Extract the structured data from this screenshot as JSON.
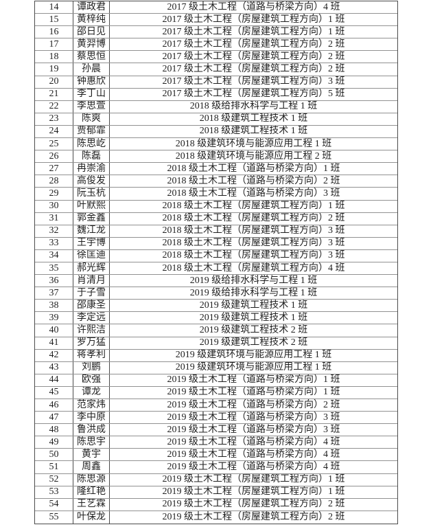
{
  "table": {
    "rows": [
      {
        "no": "14",
        "name": "谭政君",
        "class": "2017 级土木工程（道路与桥梁方向）4 班"
      },
      {
        "no": "15",
        "name": "黄梓纯",
        "class": "2017 级土木工程（房屋建筑工程方向）1 班"
      },
      {
        "no": "16",
        "name": "邵日见",
        "class": "2017 级土木工程（房屋建筑工程方向）1 班"
      },
      {
        "no": "17",
        "name": "黄羿博",
        "class": "2017 级土木工程（房屋建筑工程方向）2 班"
      },
      {
        "no": "18",
        "name": "蔡思恒",
        "class": "2017 级土木工程（房屋建筑工程方向）2 班"
      },
      {
        "no": "19",
        "name": "孙晨",
        "class": "2017 级土木工程（房屋建筑工程方向）2 班"
      },
      {
        "no": "20",
        "name": "钟惠欣",
        "class": "2017 级土木工程（房屋建筑工程方向）3 班"
      },
      {
        "no": "21",
        "name": "李丁山",
        "class": "2017 级土木工程（房屋建筑工程方向）5 班"
      },
      {
        "no": "22",
        "name": "李思萱",
        "class": "2018 级给排水科学与工程 1 班"
      },
      {
        "no": "23",
        "name": "陈爽",
        "class": "2018 级建筑工程技术 1 班"
      },
      {
        "no": "24",
        "name": "贾郁霏",
        "class": "2018 级建筑工程技术 1 班"
      },
      {
        "no": "25",
        "name": "陈思屹",
        "class": "2018 级建筑环境与能源应用工程 1 班"
      },
      {
        "no": "26",
        "name": "陈磊",
        "class": "2018 级建筑环境与能源应用工程 2 班"
      },
      {
        "no": "27",
        "name": "冉崇渝",
        "class": "2018 级土木工程（道路与桥梁方向）1 班"
      },
      {
        "no": "28",
        "name": "高俊发",
        "class": "2018 级土木工程（道路与桥梁方向）2 班"
      },
      {
        "no": "29",
        "name": "阮玉杭",
        "class": "2018 级土木工程（道路与桥梁方向）3 班"
      },
      {
        "no": "30",
        "name": "叶默熙",
        "class": "2018 级土木工程（房屋建筑工程方向）1 班"
      },
      {
        "no": "31",
        "name": "郭金鑫",
        "class": "2018 级土木工程（房屋建筑工程方向）2 班"
      },
      {
        "no": "32",
        "name": "魏江龙",
        "class": "2018 级土木工程（房屋建筑工程方向）3 班"
      },
      {
        "no": "33",
        "name": "王宇博",
        "class": "2018 级土木工程（房屋建筑工程方向）3 班"
      },
      {
        "no": "34",
        "name": "徐匡迪",
        "class": "2018 级土木工程（房屋建筑工程方向）3 班"
      },
      {
        "no": "35",
        "name": "郝光辉",
        "class": "2018 级土木工程（房屋建筑工程方向）4 班"
      },
      {
        "no": "36",
        "name": "肖清月",
        "class": "2019 级给排水科学与工程 1 班"
      },
      {
        "no": "37",
        "name": "于子雪",
        "class": "2019 级给排水科学与工程 1 班"
      },
      {
        "no": "38",
        "name": "邵康圣",
        "class": "2019 级建筑工程技术 1 班"
      },
      {
        "no": "39",
        "name": "李定远",
        "class": "2019 级建筑工程技术 1 班"
      },
      {
        "no": "40",
        "name": "许熙洁",
        "class": "2019 级建筑工程技术 2 班"
      },
      {
        "no": "41",
        "name": "罗万猛",
        "class": "2019 级建筑工程技术 2 班"
      },
      {
        "no": "42",
        "name": "蒋孝利",
        "class": "2019 级建筑环境与能源应用工程 1 班"
      },
      {
        "no": "43",
        "name": "刘鹏",
        "class": "2019 级建筑环境与能源应用工程 1 班"
      },
      {
        "no": "44",
        "name": "欧强",
        "class": "2019 级土木工程（道路与桥梁方向）1 班"
      },
      {
        "no": "45",
        "name": "谭龙",
        "class": "2019 级土木工程（道路与桥梁方向）1 班"
      },
      {
        "no": "46",
        "name": "范家炜",
        "class": "2019 级土木工程（道路与桥梁方向）2 班"
      },
      {
        "no": "47",
        "name": "李中原",
        "class": "2019 级土木工程（道路与桥梁方向）3 班"
      },
      {
        "no": "48",
        "name": "鲁洪成",
        "class": "2019 级土木工程（道路与桥梁方向）3 班"
      },
      {
        "no": "49",
        "name": "陈思宇",
        "class": "2019 级土木工程（道路与桥梁方向）4 班"
      },
      {
        "no": "50",
        "name": "黄宇",
        "class": "2019 级土木工程（道路与桥梁方向）4 班"
      },
      {
        "no": "51",
        "name": "周鑫",
        "class": "2019 级土木工程（道路与桥梁方向）4 班"
      },
      {
        "no": "52",
        "name": "陈思源",
        "class": "2019 级土木工程（房屋建筑工程方向）1 班"
      },
      {
        "no": "53",
        "name": "隆红艳",
        "class": "2019 级土木工程（房屋建筑工程方向）1 班"
      },
      {
        "no": "54",
        "name": "王艺霖",
        "class": "2019 级土木工程（房屋建筑工程方向）2 班"
      },
      {
        "no": "55",
        "name": "叶保龙",
        "class": "2019 级土木工程（房屋建筑工程方向）2 班"
      }
    ]
  }
}
